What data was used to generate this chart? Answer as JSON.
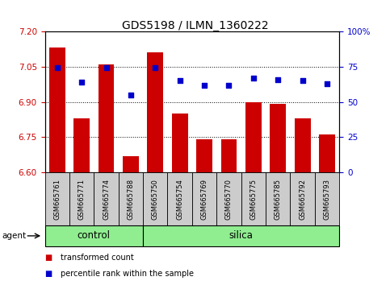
{
  "title": "GDS5198 / ILMN_1360222",
  "samples": [
    "GSM665761",
    "GSM665771",
    "GSM665774",
    "GSM665788",
    "GSM665750",
    "GSM665754",
    "GSM665769",
    "GSM665770",
    "GSM665775",
    "GSM665785",
    "GSM665792",
    "GSM665793"
  ],
  "groups": [
    "control",
    "control",
    "control",
    "control",
    "silica",
    "silica",
    "silica",
    "silica",
    "silica",
    "silica",
    "silica",
    "silica"
  ],
  "bar_values": [
    7.13,
    6.83,
    7.06,
    6.67,
    7.11,
    6.85,
    6.74,
    6.74,
    6.9,
    6.89,
    6.83,
    6.76
  ],
  "percentile_values": [
    74,
    64,
    74,
    55,
    74,
    65,
    62,
    62,
    67,
    66,
    65,
    63
  ],
  "y_min": 6.6,
  "y_max": 7.2,
  "y_ticks": [
    6.6,
    6.75,
    6.9,
    7.05,
    7.2
  ],
  "y2_ticks": [
    0,
    25,
    50,
    75,
    100
  ],
  "bar_color": "#cc0000",
  "dot_color": "#0000cc",
  "group_color": "#90ee90",
  "bar_width": 0.65,
  "legend_bar_label": "transformed count",
  "legend_dot_label": "percentile rank within the sample",
  "bg_color": "#ffffff",
  "tick_color_left": "#cc0000",
  "tick_color_right": "#0000cc",
  "xlabel_bg": "#cccccc",
  "grid_yticks": [
    6.75,
    6.9,
    7.05
  ],
  "title_fontsize": 10,
  "tick_fontsize": 7.5,
  "label_fontsize": 6,
  "group_fontsize": 8.5,
  "legend_fontsize": 7
}
